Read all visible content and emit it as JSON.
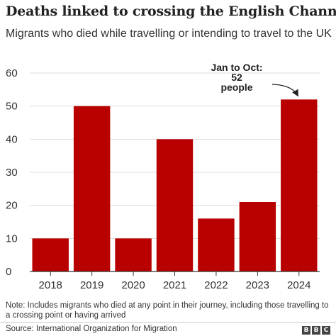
{
  "chart_data": {
    "type": "bar",
    "title": "Deaths linked to crossing the English Channel",
    "subtitle": "Migrants who died while travelling or intending to travel to the UK",
    "categories": [
      "2018",
      "2019",
      "2020",
      "2021",
      "2022",
      "2023",
      "2024"
    ],
    "values": [
      10,
      50,
      10,
      40,
      16,
      21,
      52
    ],
    "ylim": [
      0,
      60
    ],
    "yticks": [
      0,
      10,
      20,
      30,
      40,
      50,
      60
    ],
    "xlabel": "",
    "ylabel": "",
    "grid": true,
    "bar_color": "#b80000",
    "annotation": {
      "category": "2024",
      "lines": [
        "Jan to Oct:",
        "52",
        "people"
      ]
    }
  },
  "note": "Note: Includes migrants who died at any point in their journey, including those travelling to a crossing point or having arrived",
  "source": "Source: International Organization for Migration",
  "logo": [
    "B",
    "B",
    "C"
  ]
}
